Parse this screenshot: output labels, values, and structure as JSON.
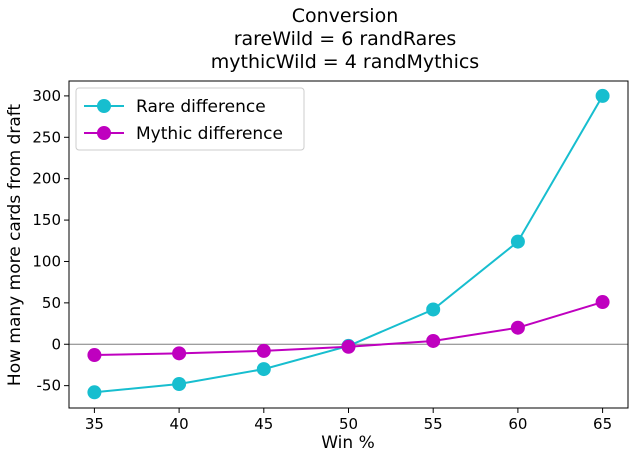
{
  "chart_data": {
    "type": "line",
    "title": [
      "Conversion",
      "rareWild = 6 randRares",
      "mythicWild = 4 randMythics"
    ],
    "xlabel": "Win %",
    "ylabel": "How many more cards from draft",
    "x": [
      35,
      40,
      45,
      50,
      55,
      60,
      65
    ],
    "xlim": [
      33.5,
      66.5
    ],
    "ylim": [
      -77,
      318
    ],
    "xticks": [
      35,
      40,
      45,
      50,
      55,
      60,
      65
    ],
    "yticks": [
      -50,
      0,
      50,
      100,
      150,
      200,
      250,
      300
    ],
    "zero_line": true,
    "grid": false,
    "legend": "upper-left",
    "series": [
      {
        "name": "Rare difference",
        "color": "#17becf",
        "values": [
          -58,
          -48,
          -30,
          -2,
          42,
          124,
          300
        ]
      },
      {
        "name": "Mythic difference",
        "color": "#bf00bf",
        "values": [
          -13,
          -11,
          -8,
          -3,
          4,
          20,
          51
        ]
      }
    ]
  }
}
